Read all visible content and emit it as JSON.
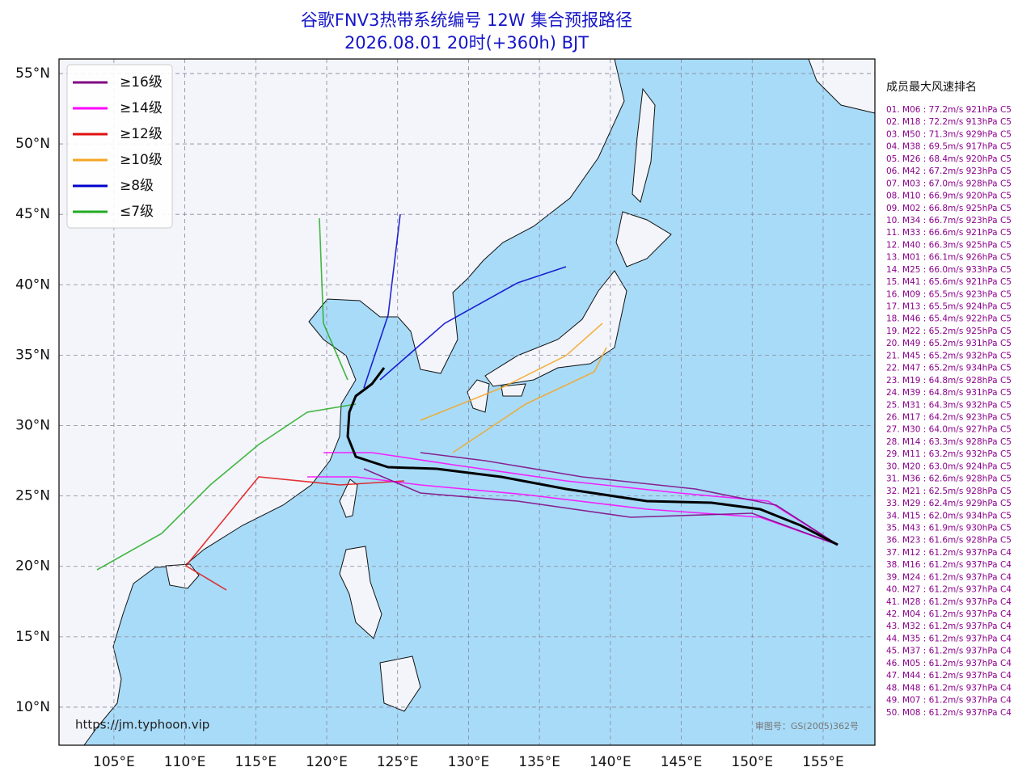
{
  "title": "谷歌FNV3热带系统编号 12W 集合预报路径",
  "subtitle": "2026.08.01 20时(+360h) BJT",
  "map": {
    "lonlim": [
      101.13,
      158.65
    ],
    "latlim": [
      7.3,
      56.03
    ],
    "lon_ticks": [
      {
        "value": 105,
        "label": "105°E"
      },
      {
        "value": 110,
        "label": "110°E"
      },
      {
        "value": 115,
        "label": "115°E"
      },
      {
        "value": 120,
        "label": "120°E"
      },
      {
        "value": 125,
        "label": "125°E"
      },
      {
        "value": 130,
        "label": "130°E"
      },
      {
        "value": 135,
        "label": "135°E"
      },
      {
        "value": 140,
        "label": "140°E"
      },
      {
        "value": 145,
        "label": "145°E"
      },
      {
        "value": 150,
        "label": "150°E"
      },
      {
        "value": 155,
        "label": "155°E"
      }
    ],
    "lat_ticks": [
      {
        "value": 55,
        "label": "55°N"
      },
      {
        "value": 50,
        "label": "50°N"
      },
      {
        "value": 45,
        "label": "45°N"
      },
      {
        "value": 40,
        "label": "40°N"
      },
      {
        "value": 35,
        "label": "35°N"
      },
      {
        "value": 30,
        "label": "30°N"
      },
      {
        "value": 25,
        "label": "25°N"
      },
      {
        "value": 20,
        "label": "20°N"
      },
      {
        "value": 15,
        "label": "15°N"
      },
      {
        "value": 10,
        "label": "10°N"
      }
    ]
  },
  "legend": [
    {
      "label": "≥16级",
      "color": "#800080"
    },
    {
      "label": "≥14级",
      "color": "#ff00ff"
    },
    {
      "label": "≥12级",
      "color": "#e01010"
    },
    {
      "label": "≥10级",
      "color": "#f5a623"
    },
    {
      "label": "≥8级",
      "color": "#0000cc"
    },
    {
      "label": "≤7级",
      "color": "#22aa22"
    }
  ],
  "ranking": {
    "title": "成员最大风速排名",
    "items": [
      "01. M06 : 77.2m/s 921hPa C5",
      "02. M18 : 72.2m/s 913hPa C5",
      "03. M50 : 71.3m/s 929hPa C5",
      "04. M38 : 69.5m/s 917hPa C5",
      "05. M26 : 68.4m/s 920hPa C5",
      "06. M42 : 67.2m/s 923hPa C5",
      "07. M03 : 67.0m/s 928hPa C5",
      "08. M10 : 66.9m/s 920hPa C5",
      "09. M02 : 66.8m/s 925hPa C5",
      "10. M34 : 66.7m/s 923hPa C5",
      "11. M33 : 66.6m/s 921hPa C5",
      "12. M40 : 66.3m/s 925hPa C5",
      "13. M01 : 66.1m/s 926hPa C5",
      "14. M25 : 66.0m/s 933hPa C5",
      "15. M41 : 65.6m/s 921hPa C5",
      "16. M09 : 65.5m/s 923hPa C5",
      "17. M13 : 65.5m/s 924hPa C5",
      "18. M46 : 65.4m/s 922hPa C5",
      "19. M22 : 65.2m/s 925hPa C5",
      "20. M49 : 65.2m/s 931hPa C5",
      "21. M45 : 65.2m/s 932hPa C5",
      "22. M47 : 65.2m/s 934hPa C5",
      "23. M19 : 64.8m/s 928hPa C5",
      "24. M39 : 64.8m/s 931hPa C5",
      "25. M31 : 64.3m/s 932hPa C5",
      "26. M17 : 64.2m/s 923hPa C5",
      "27. M30 : 64.0m/s 927hPa C5",
      "28. M14 : 63.3m/s 928hPa C5",
      "29. M11 : 63.2m/s 932hPa C5",
      "30. M20 : 63.0m/s 924hPa C5",
      "31. M36 : 62.6m/s 928hPa C5",
      "32. M21 : 62.5m/s 928hPa C5",
      "33. M29 : 62.4m/s 929hPa C5",
      "34. M15 : 62.0m/s 934hPa C5",
      "35. M43 : 61.9m/s 930hPa C5",
      "36. M23 : 61.6m/s 928hPa C5",
      "37. M12 : 61.2m/s 937hPa C4",
      "38. M16 : 61.2m/s 937hPa C4",
      "39. M24 : 61.2m/s 937hPa C4",
      "40. M27 : 61.2m/s 937hPa C4",
      "41. M28 : 61.2m/s 937hPa C4",
      "42. M04 : 61.2m/s 937hPa C4",
      "43. M32 : 61.2m/s 937hPa C4",
      "44. M35 : 61.2m/s 937hPa C4",
      "45. M37 : 61.2m/s 937hPa C4",
      "46. M05 : 61.2m/s 937hPa C4",
      "47. M44 : 61.2m/s 937hPa C4",
      "48. M48 : 61.2m/s 937hPa C4",
      "49. M07 : 61.2m/s 937hPa C4",
      "50. M08 : 61.2m/s 937hPa C4"
    ]
  },
  "source": "https://jm.typhoon.vip",
  "approval": "审图号：GS(2005)362号"
}
